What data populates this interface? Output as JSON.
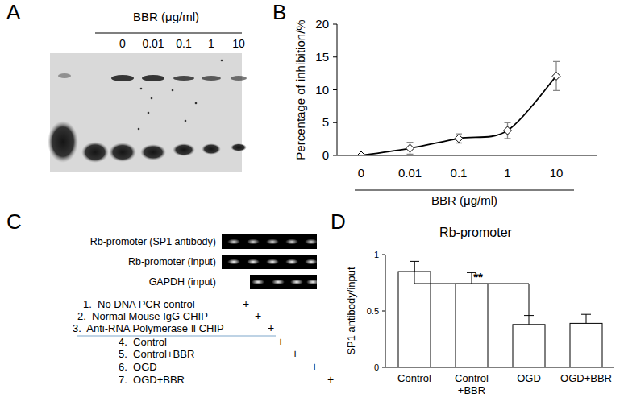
{
  "panel_labels": [
    "A",
    "B",
    "C",
    "D"
  ],
  "emsa": {
    "header": "BBR (μg/ml)",
    "lanes": [
      0,
      0.01,
      0.1,
      1,
      10
    ]
  },
  "chart_data": [
    {
      "type": "line",
      "categories": [
        "0",
        "0.01",
        "0.1",
        "1",
        "10"
      ],
      "values": [
        0,
        1.1,
        2.6,
        3.8,
        12.1
      ],
      "errors": [
        0,
        0.9,
        0.7,
        1.2,
        2.2
      ],
      "x_label": "BBR (μg/ml)",
      "y_label": "Percentage of inhibition/%",
      "ylim": [
        0,
        20
      ],
      "yticks": [
        0,
        5,
        10,
        15,
        20
      ],
      "color": "#000000",
      "marker": "diamond",
      "line_style": "smooth"
    },
    {
      "type": "bar",
      "title": "Rb-promoter",
      "categories": [
        "Control",
        "Control\n+BBR",
        "OGD",
        "OGD+BBR"
      ],
      "values": [
        0.85,
        0.74,
        0.38,
        0.39
      ],
      "errors": [
        0.09,
        0.1,
        0.08,
        0.08
      ],
      "y_label": "SP1 antibody/input",
      "ylim": [
        0,
        1
      ],
      "yticks": [
        0,
        0.5,
        1
      ],
      "color": "#ffffff",
      "annotations": [
        {
          "text": "**",
          "between": [
            0,
            2
          ]
        }
      ]
    }
  ],
  "chip": {
    "rows": [
      "Rb-promoter (SP1 antibody)",
      "Rb-promoter (input)",
      "GAPDH (input)"
    ],
    "conditions": [
      "1.  No DNA PCR control",
      "2.  Normal Mouse IgG CHIP",
      "3.  Anti-RNA Polymerase Ⅱ CHIP",
      "4.  Control",
      "5.  Control+BBR",
      "6.  OGD",
      "7.  OGD+BBR"
    ],
    "mark": "+"
  }
}
